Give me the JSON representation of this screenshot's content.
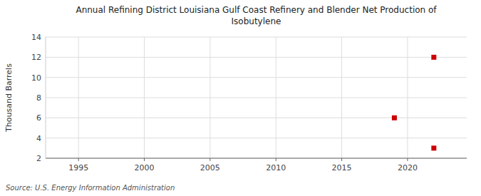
{
  "chart_data": {
    "type": "scatter",
    "title": "Annual Refining District Louisiana Gulf Coast Refinery and Blender Net Production of\nIsobutylene",
    "y_label": "Thousand Barrels",
    "source": "Source: U.S. Energy Information Administration",
    "x": [
      2019,
      2022,
      2022
    ],
    "values": [
      6,
      12,
      3
    ],
    "color": "#cc0000",
    "marker": "square",
    "xlim": [
      1992.5,
      2024.5
    ],
    "ylim": [
      2,
      14
    ],
    "xticks": [
      1995,
      2000,
      2005,
      2010,
      2015,
      2020
    ],
    "yticks": [
      2,
      4,
      6,
      8,
      10,
      12,
      14
    ],
    "grid": true
  }
}
